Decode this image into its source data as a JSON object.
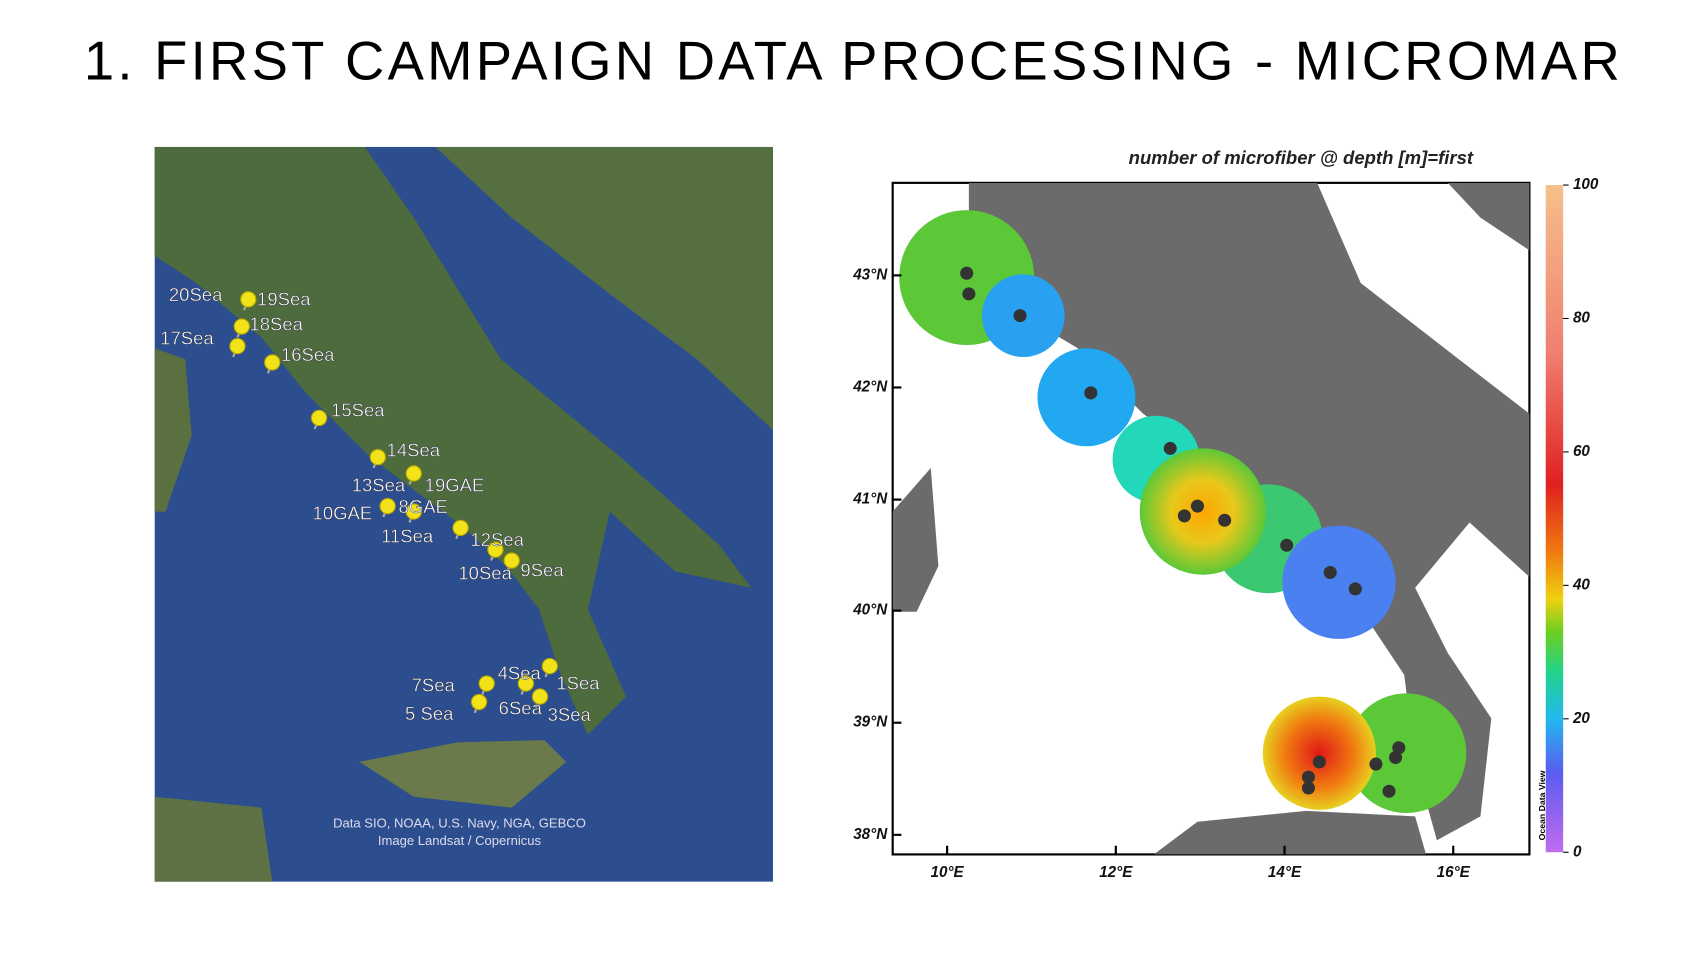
{
  "header": {
    "title": "1. FIRST CAMPAIGN DATA PROCESSING - MICROMAR"
  },
  "satellite_map": {
    "site_labels": [
      "20Sea",
      "19Sea",
      "18Sea",
      "17Sea",
      "16Sea",
      "15Sea",
      "14Sea",
      "13Sea",
      "19GAE",
      "10GAE",
      "8GAE",
      "11Sea",
      "12Sea",
      "10Sea",
      "9Sea",
      "7Sea",
      "4Sea",
      "1Sea",
      "5 Sea",
      "6Sea",
      "3Sea"
    ],
    "credits": [
      "Data SIO, NOAA, U.S. Navy, NGA, GEBCO",
      "Image Landsat / Copernicus"
    ]
  },
  "concentration_map": {
    "title": "number of microfiber @ depth [m]=first",
    "lat_labels": [
      "43°N",
      "42°N",
      "41°N",
      "40°N",
      "39°N",
      "38°N"
    ],
    "lon_labels": [
      "10°E",
      "12°E",
      "14°E",
      "16°E"
    ],
    "colorbar_ticks": [
      0,
      20,
      40,
      60,
      80,
      100
    ],
    "watermark": "Ocean Data View"
  }
}
